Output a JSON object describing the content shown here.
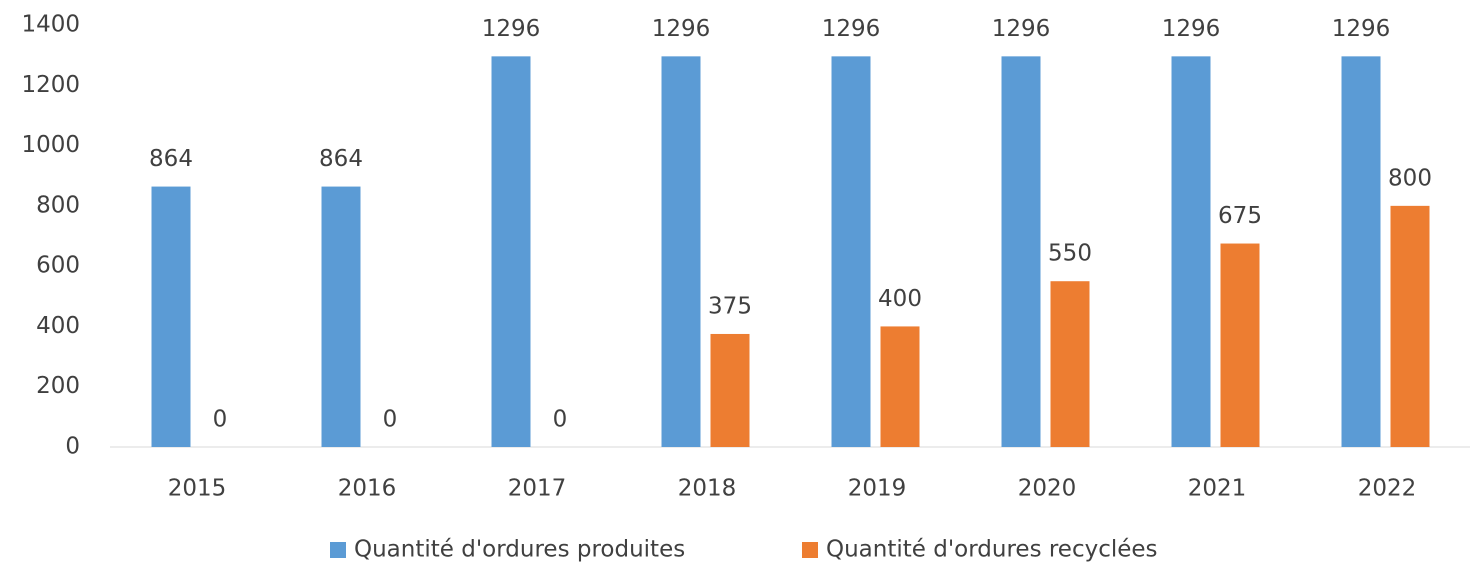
{
  "chart_data": {
    "type": "bar",
    "categories": [
      "2015",
      "2016",
      "2017",
      "2018",
      "2019",
      "2020",
      "2021",
      "2022"
    ],
    "series": [
      {
        "name": "Quantité d'ordures produites",
        "color": "#5b9bd5",
        "values": [
          864,
          864,
          1296,
          1296,
          1296,
          1296,
          1296,
          1296
        ]
      },
      {
        "name": "Quantité d'ordures recyclées",
        "color": "#ed7d31",
        "values": [
          0,
          0,
          0,
          375,
          400,
          550,
          675,
          800
        ]
      }
    ],
    "ylim": [
      0,
      1400
    ],
    "yticks": [
      0,
      200,
      400,
      600,
      800,
      1000,
      1200,
      1400
    ],
    "grid": false,
    "legend": "bottom"
  }
}
